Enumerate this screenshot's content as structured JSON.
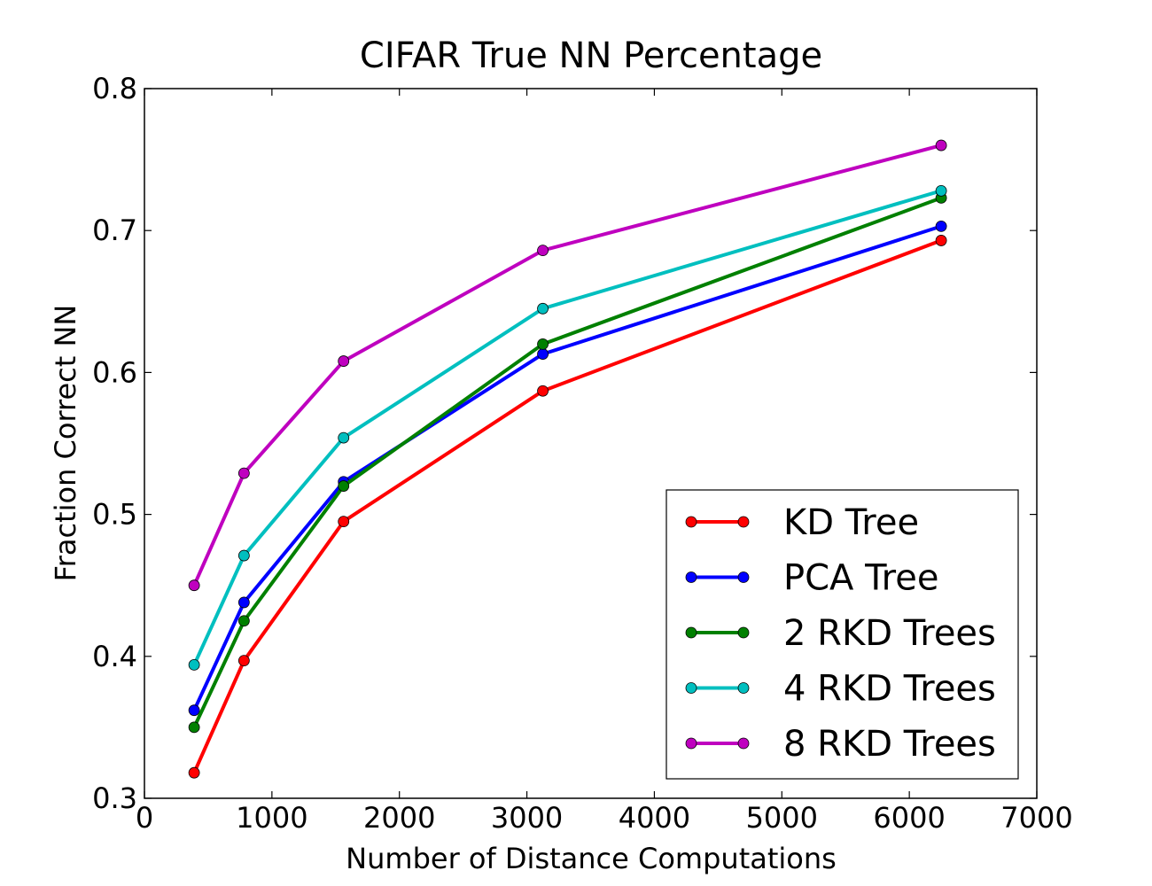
{
  "chart_data": {
    "type": "line",
    "title": "CIFAR True NN Percentage",
    "xlabel": "Number of Distance Computations",
    "ylabel": "Fraction Correct NN",
    "xlim": [
      0,
      7000
    ],
    "ylim": [
      0.3,
      0.8
    ],
    "xticks": [
      0,
      1000,
      2000,
      3000,
      4000,
      5000,
      6000,
      7000
    ],
    "xtick_labels": [
      "0",
      "1000",
      "2000",
      "3000",
      "4000",
      "5000",
      "6000",
      "7000"
    ],
    "yticks": [
      0.3,
      0.4,
      0.5,
      0.6,
      0.7,
      0.8
    ],
    "ytick_labels": [
      "0.3",
      "0.4",
      "0.5",
      "0.6",
      "0.7",
      "0.8"
    ],
    "grid": false,
    "legend_position": "lower-right",
    "x": [
      390,
      781,
      1562,
      3125,
      6250
    ],
    "series": [
      {
        "name": "KD Tree",
        "color": "#ff0000",
        "values": [
          0.318,
          0.397,
          0.495,
          0.587,
          0.693
        ]
      },
      {
        "name": "PCA Tree",
        "color": "#0000ff",
        "values": [
          0.362,
          0.438,
          0.523,
          0.613,
          0.703
        ]
      },
      {
        "name": "2 RKD Trees",
        "color": "#008000",
        "values": [
          0.35,
          0.425,
          0.52,
          0.62,
          0.723
        ]
      },
      {
        "name": "4 RKD Trees",
        "color": "#00bfbf",
        "values": [
          0.394,
          0.471,
          0.554,
          0.645,
          0.728
        ]
      },
      {
        "name": "8 RKD Trees",
        "color": "#bf00bf",
        "values": [
          0.45,
          0.529,
          0.608,
          0.686,
          0.76
        ]
      }
    ]
  }
}
